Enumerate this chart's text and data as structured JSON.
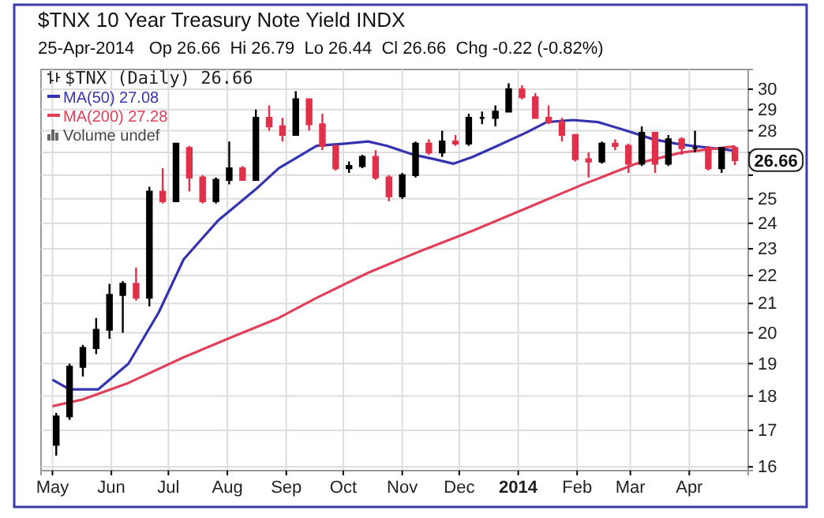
{
  "chart_data": {
    "type": "candlestick",
    "title": "$TNX 10 Year Treasury Note Yield INDX",
    "subtitle": "25-Apr-2014   Op 26.66  Hi 26.79  Lo 26.44  Cl 26.66  Chg -0.22 (-0.82%)",
    "xlim": [
      "2013-04-25",
      "2014-05-02"
    ],
    "xticks": [
      {
        "value": "2013-05-01",
        "label": "May"
      },
      {
        "value": "2013-06-01",
        "label": "Jun"
      },
      {
        "value": "2013-07-01",
        "label": "Jul"
      },
      {
        "value": "2013-08-01",
        "label": "Aug"
      },
      {
        "value": "2013-09-01",
        "label": "Sep"
      },
      {
        "value": "2013-10-01",
        "label": "Oct"
      },
      {
        "value": "2013-11-01",
        "label": "Nov"
      },
      {
        "value": "2013-12-01",
        "label": "Dec"
      },
      {
        "value": "2014-01-01",
        "label": "2014"
      },
      {
        "value": "2014-02-01",
        "label": "Feb"
      },
      {
        "value": "2014-03-01",
        "label": "Mar"
      },
      {
        "value": "2014-04-01",
        "label": "Apr"
      }
    ],
    "ylim": [
      15.9,
      31
    ],
    "log": true,
    "yticks": [
      16,
      17,
      18,
      19,
      20,
      21,
      22,
      23,
      24,
      25,
      {
        "value": 26,
        "label": null
      },
      {
        "value": 27,
        "label": null
      },
      28,
      29,
      30
    ],
    "grid": true,
    "legend": "top left",
    "annotations": [
      "Volume undef",
      {
        "text": "26.66",
        "x": "2014-04-25",
        "y": 26.66
      }
    ],
    "series": [
      {
        "name": "$TNX (Daily) 26.66",
        "x": [
          "2013-05-03",
          "2013-05-10",
          "2013-05-17",
          "2013-05-24",
          "2013-05-31",
          "2013-06-07",
          "2013-06-14",
          "2013-06-21",
          "2013-06-28",
          "2013-07-05",
          "2013-07-12",
          "2013-07-19",
          "2013-07-26",
          "2013-08-02",
          "2013-08-09",
          "2013-08-16",
          "2013-08-23",
          "2013-08-30",
          "2013-09-06",
          "2013-09-13",
          "2013-09-20",
          "2013-09-27",
          "2013-10-04",
          "2013-10-11",
          "2013-10-18",
          "2013-10-25",
          "2013-11-01",
          "2013-11-08",
          "2013-11-15",
          "2013-11-22",
          "2013-11-29",
          "2013-12-06",
          "2013-12-13",
          "2013-12-20",
          "2013-12-27",
          "2014-01-03",
          "2014-01-10",
          "2014-01-17",
          "2014-01-24",
          "2014-01-31",
          "2014-02-07",
          "2014-02-14",
          "2014-02-21",
          "2014-02-28",
          "2014-03-07",
          "2014-03-14",
          "2014-03-21",
          "2014-03-28",
          "2014-04-04",
          "2014-04-11",
          "2014-04-18",
          "2014-04-25"
        ],
        "ohlc": [
          [
            16.6,
            17.5,
            16.3,
            17.4
          ],
          [
            17.4,
            19.0,
            17.3,
            18.9
          ],
          [
            18.9,
            19.6,
            18.6,
            19.5
          ],
          [
            19.5,
            20.5,
            19.3,
            20.1
          ],
          [
            20.1,
            21.7,
            19.8,
            21.3
          ],
          [
            21.3,
            21.8,
            20.0,
            21.7
          ],
          [
            21.7,
            22.3,
            21.1,
            21.2
          ],
          [
            21.2,
            25.5,
            20.9,
            25.3
          ],
          [
            25.3,
            26.3,
            24.8,
            24.9
          ],
          [
            24.9,
            27.4,
            24.9,
            27.4
          ],
          [
            27.2,
            27.3,
            25.3,
            25.9
          ],
          [
            25.9,
            26.0,
            24.8,
            24.9
          ],
          [
            24.9,
            25.9,
            24.8,
            25.8
          ],
          [
            25.8,
            27.5,
            25.6,
            26.3
          ],
          [
            26.3,
            26.4,
            25.8,
            25.8
          ],
          [
            25.8,
            29.0,
            25.8,
            28.6
          ],
          [
            28.6,
            29.2,
            28.0,
            28.2
          ],
          [
            28.2,
            28.6,
            27.5,
            27.8
          ],
          [
            27.8,
            29.9,
            27.8,
            29.5
          ],
          [
            29.5,
            29.5,
            28.0,
            28.3
          ],
          [
            28.3,
            28.8,
            27.1,
            27.3
          ],
          [
            27.3,
            27.3,
            26.2,
            26.3
          ],
          [
            26.3,
            26.6,
            26.1,
            26.4
          ],
          [
            26.4,
            26.9,
            26.3,
            26.8
          ],
          [
            26.8,
            27.1,
            25.8,
            25.9
          ],
          [
            25.9,
            26.0,
            24.9,
            25.1
          ],
          [
            25.1,
            26.1,
            25.0,
            26.0
          ],
          [
            26.0,
            27.5,
            25.9,
            27.4
          ],
          [
            27.4,
            27.6,
            26.9,
            27.0
          ],
          [
            27.0,
            28.0,
            26.8,
            27.5
          ],
          [
            27.5,
            27.8,
            27.3,
            27.4
          ],
          [
            27.4,
            28.8,
            27.3,
            28.6
          ],
          [
            28.6,
            28.9,
            28.3,
            28.6
          ],
          [
            28.6,
            29.2,
            28.2,
            28.9
          ],
          [
            28.9,
            30.3,
            28.9,
            30.0
          ],
          [
            30.0,
            30.2,
            29.5,
            29.6
          ],
          [
            29.6,
            29.8,
            28.6,
            28.6
          ],
          [
            28.6,
            29.2,
            28.3,
            28.4
          ],
          [
            28.4,
            28.6,
            27.5,
            27.8
          ],
          [
            27.8,
            27.8,
            26.6,
            26.7
          ],
          [
            26.7,
            27.0,
            25.9,
            26.6
          ],
          [
            26.6,
            27.5,
            26.5,
            27.4
          ],
          [
            27.4,
            27.6,
            27.1,
            27.3
          ],
          [
            27.3,
            27.4,
            26.1,
            26.5
          ],
          [
            26.5,
            28.2,
            26.4,
            27.9
          ],
          [
            27.9,
            27.9,
            26.1,
            26.5
          ],
          [
            26.5,
            27.8,
            26.4,
            27.6
          ],
          [
            27.6,
            27.7,
            26.9,
            27.2
          ],
          [
            27.2,
            28.0,
            27.0,
            27.2
          ],
          [
            27.2,
            27.3,
            26.2,
            26.3
          ],
          [
            26.3,
            27.2,
            26.1,
            27.2
          ],
          [
            27.2,
            27.3,
            26.44,
            26.66
          ]
        ],
        "colors": [
          "#000000",
          "#000000",
          "#000000",
          "#000000",
          "#000000",
          "#000000",
          "#e0304a",
          "#000000",
          "#e0304a",
          "#000000",
          "#e0304a",
          "#e0304a",
          "#000000",
          "#000000",
          "#e0304a",
          "#000000",
          "#e0304a",
          "#e0304a",
          "#000000",
          "#e0304a",
          "#e0304a",
          "#e0304a",
          "#000000",
          "#000000",
          "#e0304a",
          "#e0304a",
          "#000000",
          "#000000",
          "#e0304a",
          "#000000",
          "#e0304a",
          "#000000",
          "#000000",
          "#000000",
          "#000000",
          "#e0304a",
          "#e0304a",
          "#e0304a",
          "#e0304a",
          "#e0304a",
          "#e0304a",
          "#000000",
          "#e0304a",
          "#e0304a",
          "#000000",
          "#e0304a",
          "#000000",
          "#e0304a",
          "#000000",
          "#e0304a",
          "#000000",
          "#e0304a"
        ]
      },
      {
        "type": "line",
        "name": "MA(50) 27.08",
        "color": "#3434b0",
        "x": [
          "2013-05-01",
          "2013-05-10",
          "2013-05-25",
          "2013-06-10",
          "2013-06-26",
          "2013-07-09",
          "2013-07-27",
          "2013-08-16",
          "2013-08-28",
          "2013-09-17",
          "2013-10-02",
          "2013-10-14",
          "2013-10-24",
          "2013-11-07",
          "2013-11-18",
          "2013-11-28",
          "2013-12-08",
          "2013-12-21",
          "2014-01-05",
          "2014-01-16",
          "2014-01-30",
          "2014-02-12",
          "2014-02-27",
          "2014-03-13",
          "2014-03-25",
          "2014-04-02",
          "2014-04-13",
          "2014-04-25"
        ],
        "values": [
          18.5,
          18.2,
          18.2,
          19.0,
          20.7,
          22.6,
          24.1,
          25.4,
          26.3,
          27.3,
          27.4,
          27.5,
          27.3,
          26.9,
          26.7,
          26.5,
          26.8,
          27.3,
          27.9,
          28.4,
          28.5,
          28.4,
          28.0,
          27.6,
          27.4,
          27.3,
          27.2,
          27.08
        ]
      },
      {
        "type": "line",
        "name": "MA(200) 27.28",
        "color": "#e0405a",
        "x": [
          "2013-05-01",
          "2013-05-17",
          "2013-06-10",
          "2013-07-09",
          "2013-08-05",
          "2013-08-28",
          "2013-09-17",
          "2013-10-14",
          "2013-11-10",
          "2013-12-08",
          "2014-01-05",
          "2014-02-04",
          "2014-03-04",
          "2014-03-28",
          "2014-04-25"
        ],
        "values": [
          17.7,
          17.9,
          18.4,
          19.2,
          19.9,
          20.5,
          21.2,
          22.1,
          22.9,
          23.7,
          24.6,
          25.6,
          26.5,
          27.0,
          27.28
        ]
      }
    ]
  }
}
